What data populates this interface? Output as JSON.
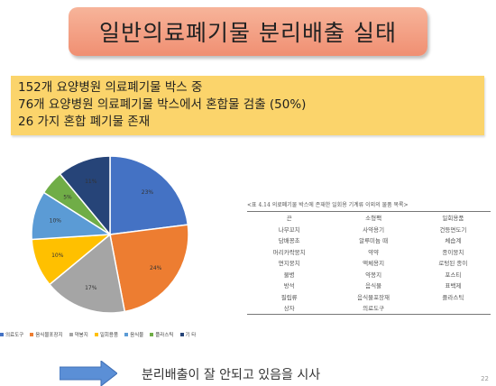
{
  "title": "일반의료폐기물 분리배출 실태",
  "summary": [
    "152개 요양병원 의료폐기물 박스 중",
    "76개  요양병원  의료폐기물 박스에서 혼합물 검출 (50%)",
    "26 가지 혼합 폐기물 존재"
  ],
  "chart_data": {
    "type": "pie",
    "slices": [
      {
        "name": "의료도구",
        "value": 23,
        "label": "23%",
        "color": "#4472c4"
      },
      {
        "name": "음식물포장지",
        "value": 24,
        "label": "24%",
        "color": "#ed7d31"
      },
      {
        "name": "약봉지",
        "value": 17,
        "label": "17%",
        "color": "#a5a5a5"
      },
      {
        "name": "일회용품",
        "value": 10,
        "label": "10%",
        "color": "#ffc000"
      },
      {
        "name": "음식물",
        "value": 10,
        "label": "10%",
        "color": "#5b9bd5"
      },
      {
        "name": "플라스틱",
        "value": 5,
        "label": "5%",
        "color": "#70ad47"
      },
      {
        "name": "기 타",
        "value": 11,
        "label": "11%",
        "color": "#264478"
      }
    ]
  },
  "legend": [
    {
      "name": "의료도구",
      "color": "#4472c4"
    },
    {
      "name": "음식물포장지",
      "color": "#ed7d31"
    },
    {
      "name": "약봉지",
      "color": "#a5a5a5"
    },
    {
      "name": "일회용품",
      "color": "#ffc000"
    },
    {
      "name": "음식물",
      "color": "#5b9bd5"
    },
    {
      "name": "플라스틱",
      "color": "#70ad47"
    },
    {
      "name": "기 타",
      "color": "#264478"
    }
  ],
  "table": {
    "caption": "<표 4.14 의료폐기물 박스에 존재한 일회용 기계류 이외의 물품 목록>",
    "rows": [
      [
        "끈",
        "소형팩",
        "일회용품"
      ],
      [
        "나무꼬치",
        "사약용기",
        "건등면도기"
      ],
      [
        "담배꽁초",
        "알루미늄 때",
        "체습계"
      ],
      [
        "머리카락뭉치",
        "약약",
        "종이뭉치"
      ],
      [
        "면지뭉치",
        "액체용지",
        "로텅된 종이"
      ],
      [
        "물병",
        "약봉지",
        "포스티"
      ],
      [
        "방석",
        "음식물",
        "표백제"
      ],
      [
        "필립류",
        "음식물포장재",
        "플라스틱"
      ],
      [
        "상자",
        "의료도구",
        ""
      ]
    ]
  },
  "conclusion": "분리배출이 잘 안되고 있음을 시사",
  "page_number": "22"
}
